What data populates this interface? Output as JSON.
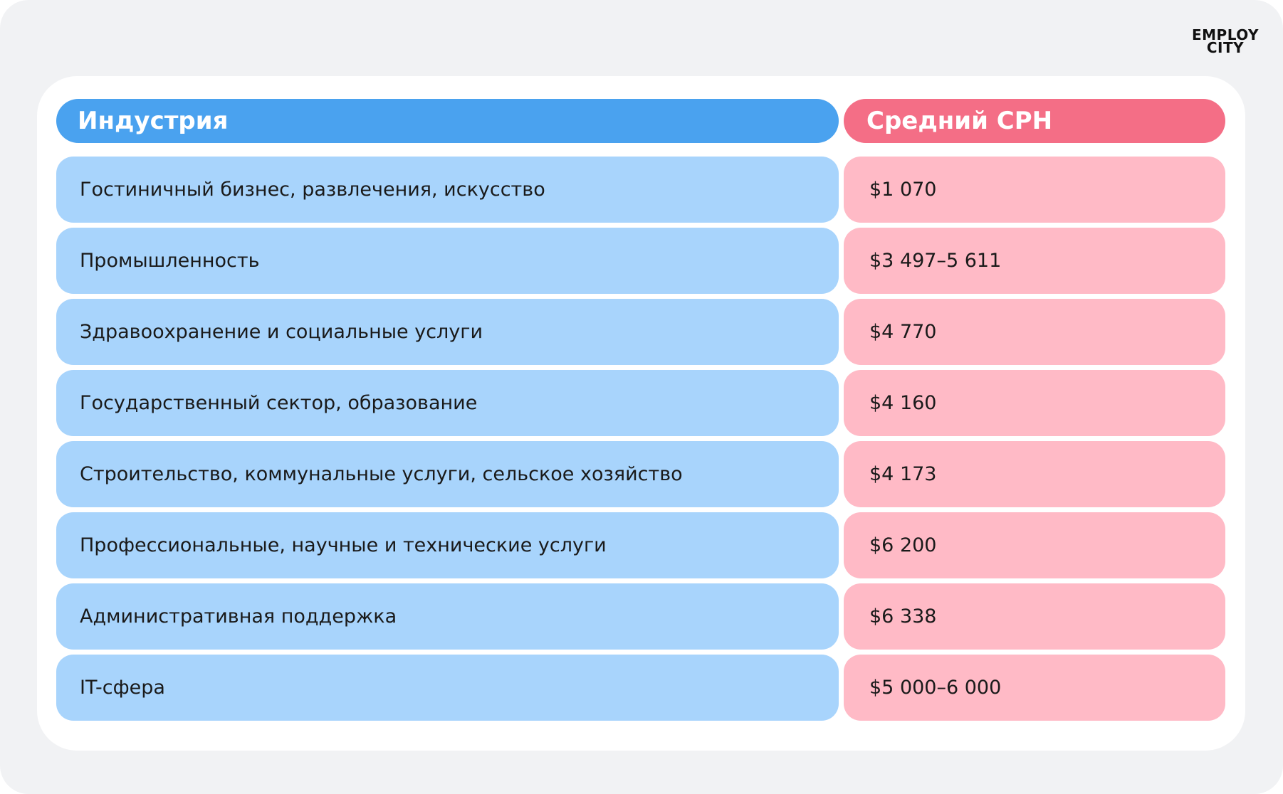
{
  "logo": [
    "EMPLOY",
    "CITY"
  ],
  "table": {
    "columns": [
      "Индустрия",
      "Средний CPH"
    ],
    "rows": [
      [
        "Гостиничный бизнес, развлечения, искусство",
        "$1 070"
      ],
      [
        "Промышленность",
        "$3 497–5 611"
      ],
      [
        "Здравоохранение и социальные услуги",
        "$4 770"
      ],
      [
        "Государственный сектор, образование",
        "$4 160"
      ],
      [
        "Строительство, коммунальные услуги, сельское хозяйство",
        "$4 173"
      ],
      [
        "Профессиональные, научные и технические услуги",
        "$6 200"
      ],
      [
        "Административная поддержка",
        "$6 338"
      ],
      [
        "IT-сфера",
        "$5 000–6 000"
      ]
    ]
  }
}
